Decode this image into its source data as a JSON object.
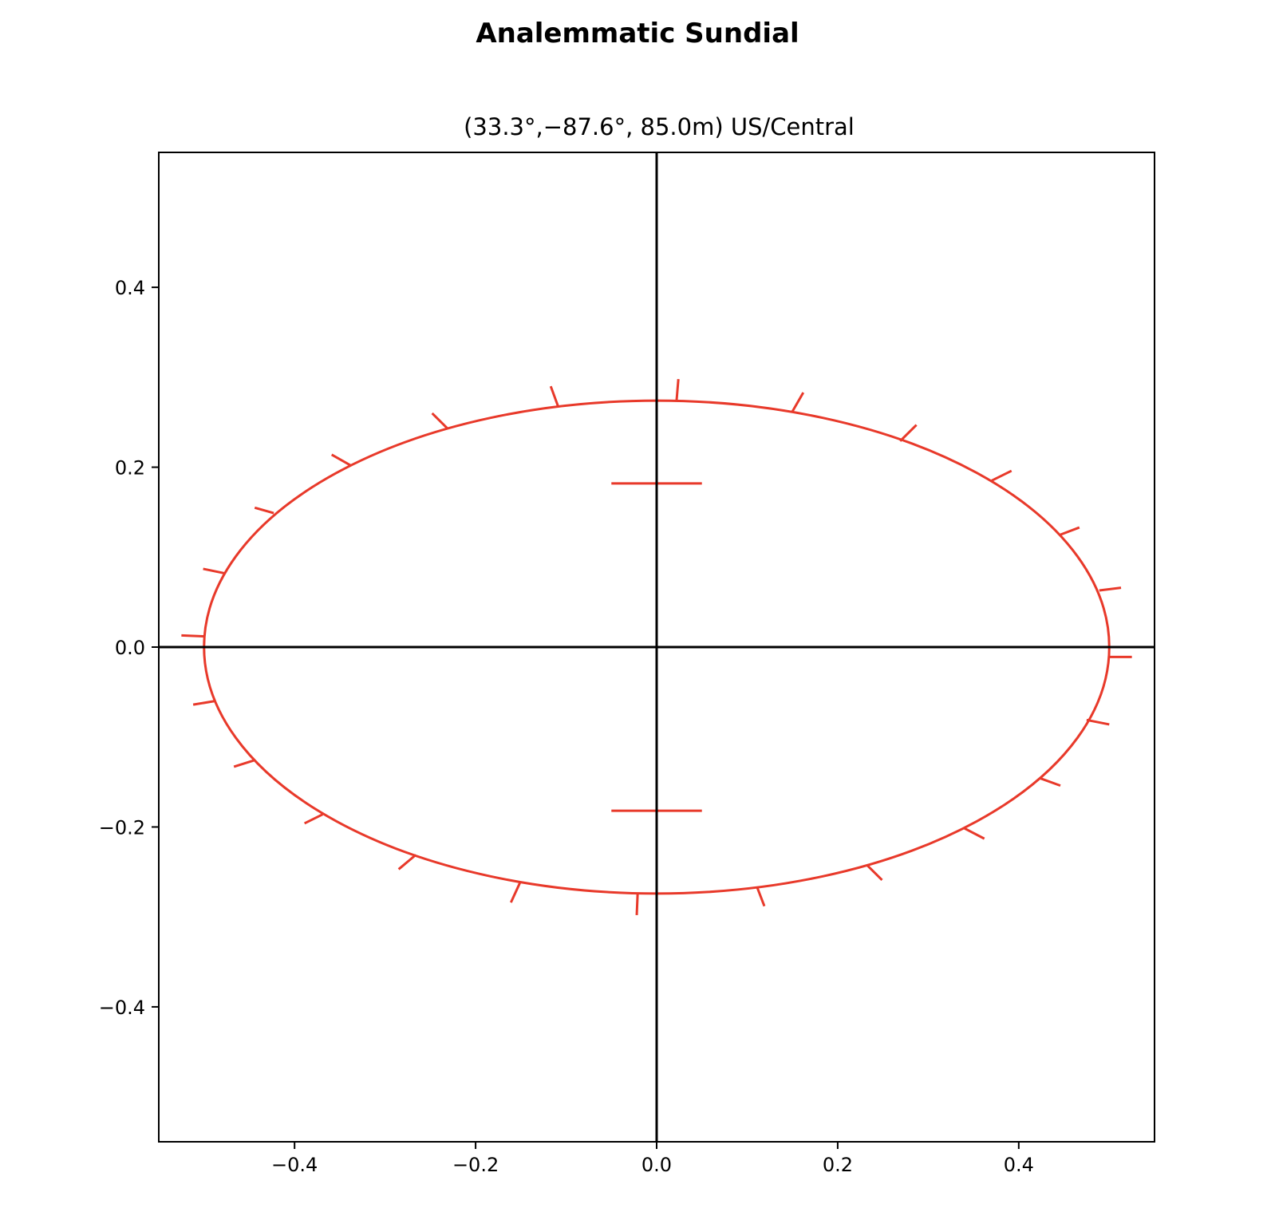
{
  "chart_data": {
    "type": "line",
    "title": "Analemmatic Sundial",
    "subtitle": "(33.3°,−87.6°,  85.0m) US/Central",
    "xlabel": "",
    "ylabel": "",
    "xlim": [
      -0.55,
      0.55
    ],
    "ylim": [
      -0.55,
      0.55
    ],
    "xticks": [
      -0.4,
      -0.2,
      0.0,
      0.2,
      0.4
    ],
    "xtick_labels": [
      "−0.4",
      "−0.2",
      "0.0",
      "0.2",
      "0.4"
    ],
    "yticks": [
      -0.4,
      -0.2,
      0.0,
      0.2,
      0.4
    ],
    "ytick_labels": [
      "−0.4",
      "−0.2",
      "0.0",
      "0.2",
      "0.4"
    ],
    "grid": false,
    "axes_lines": {
      "x": 0.0,
      "y": 0.0,
      "color": "#000000"
    },
    "ellipse": {
      "semi_major": 0.5,
      "semi_minor": 0.274,
      "color": "#e8392a"
    },
    "date_scale": {
      "x": 0.0,
      "y_min": -0.182,
      "y_max": 0.182,
      "bar_half_width": 0.05,
      "color": "#e8392a"
    },
    "hour_marks": [
      {
        "x": 0.022,
        "y": 0.274,
        "x2": 0.024,
        "y2": 0.298
      },
      {
        "x": 0.15,
        "y": 0.262,
        "x2": 0.162,
        "y2": 0.283
      },
      {
        "x": 0.269,
        "y": 0.229,
        "x2": 0.287,
        "y2": 0.247
      },
      {
        "x": 0.37,
        "y": 0.185,
        "x2": 0.392,
        "y2": 0.196
      },
      {
        "x": 0.446,
        "y": 0.125,
        "x2": 0.467,
        "y2": 0.133
      },
      {
        "x": 0.489,
        "y": 0.063,
        "x2": 0.513,
        "y2": 0.066
      },
      {
        "x": 0.5,
        "y": -0.011,
        "x2": 0.525,
        "y2": -0.011
      },
      {
        "x": 0.475,
        "y": -0.081,
        "x2": 0.5,
        "y2": -0.086
      },
      {
        "x": 0.424,
        "y": -0.146,
        "x2": 0.446,
        "y2": -0.154
      },
      {
        "x": 0.339,
        "y": -0.201,
        "x2": 0.362,
        "y2": -0.213
      },
      {
        "x": 0.232,
        "y": -0.242,
        "x2": 0.249,
        "y2": -0.259
      },
      {
        "x": 0.111,
        "y": -0.267,
        "x2": 0.119,
        "y2": -0.288
      },
      {
        "x": -0.021,
        "y": -0.274,
        "x2": -0.022,
        "y2": -0.298
      },
      {
        "x": -0.151,
        "y": -0.262,
        "x2": -0.161,
        "y2": -0.284
      },
      {
        "x": -0.266,
        "y": -0.231,
        "x2": -0.285,
        "y2": -0.247
      },
      {
        "x": -0.369,
        "y": -0.186,
        "x2": -0.389,
        "y2": -0.196
      },
      {
        "x": -0.445,
        "y": -0.126,
        "x2": -0.467,
        "y2": -0.133
      },
      {
        "x": -0.488,
        "y": -0.06,
        "x2": -0.512,
        "y2": -0.064
      },
      {
        "x": -0.5,
        "y": 0.012,
        "x2": -0.525,
        "y2": 0.013
      },
      {
        "x": -0.477,
        "y": 0.082,
        "x2": -0.501,
        "y2": 0.087
      },
      {
        "x": -0.423,
        "y": 0.149,
        "x2": -0.444,
        "y2": 0.155
      },
      {
        "x": -0.338,
        "y": 0.202,
        "x2": -0.359,
        "y2": 0.214
      },
      {
        "x": -0.231,
        "y": 0.243,
        "x2": -0.248,
        "y2": 0.26
      },
      {
        "x": -0.109,
        "y": 0.268,
        "x2": -0.117,
        "y2": 0.29
      }
    ]
  }
}
